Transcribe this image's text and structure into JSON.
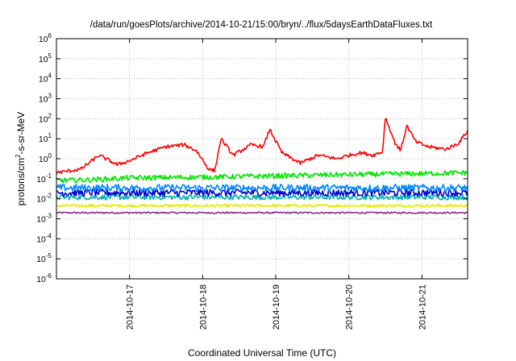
{
  "chart_data": {
    "type": "line",
    "title": "/data/run/goesPlots/archive/2014-10-21/15:00/bryn/../flux/5daysEarthDataFluxes.txt",
    "xlabel": "Coordinated Universal Time (UTC)",
    "ylabel": {
      "base": "protons/cm",
      "exp": "2",
      "rest": "-s-sr-MeV"
    },
    "yscale": "log",
    "ylim": [
      1e-06,
      1000000.0
    ],
    "ytick_labels": [
      {
        "base": "10",
        "exp": "-6"
      },
      {
        "base": "10",
        "exp": "-5"
      },
      {
        "base": "10",
        "exp": "-4"
      },
      {
        "base": "10",
        "exp": "-3"
      },
      {
        "base": "10",
        "exp": "-2"
      },
      {
        "base": "10",
        "exp": "-1"
      },
      {
        "base": "10",
        "exp": "0"
      },
      {
        "base": "10",
        "exp": "1"
      },
      {
        "base": "10",
        "exp": "2"
      },
      {
        "base": "10",
        "exp": "3"
      },
      {
        "base": "10",
        "exp": "4"
      },
      {
        "base": "10",
        "exp": "5"
      },
      {
        "base": "10",
        "exp": "6"
      }
    ],
    "xlim": [
      "2014-10-16 00:00",
      "2014-10-21 15:00"
    ],
    "xtick_labels": [
      "2014-10-17",
      "2014-10-18",
      "2014-10-19",
      "2014-10-20",
      "2014-10-21"
    ],
    "x_tick_dates": [
      "2014-10-17 00:00",
      "2014-10-18 00:00",
      "2014-10-19 00:00",
      "2014-10-20 00:00",
      "2014-10-21 00:00"
    ],
    "grid": true,
    "series": [
      {
        "color": "#8b2d8b",
        "x": [
          "2014-10-16 00:00",
          "2014-10-21 15:00"
        ],
        "y": [
          0.002,
          0.002
        ]
      },
      {
        "color": "#e8e800",
        "x": [
          "2014-10-16 00:00",
          "2014-10-21 15:00"
        ],
        "y": [
          0.0045,
          0.0045
        ]
      },
      {
        "color": "#00b3b3",
        "x": [
          "2014-10-16 00:00",
          "2014-10-21 15:00"
        ],
        "y": [
          0.012,
          0.012
        ]
      },
      {
        "color": "#0000cc",
        "x": [
          "2014-10-16 00:00",
          "2014-10-21 15:00"
        ],
        "y": [
          0.02,
          0.02
        ]
      },
      {
        "color": "#0088ff",
        "x": [
          "2014-10-16 00:00",
          "2014-10-21 15:00"
        ],
        "y": [
          0.035,
          0.035
        ]
      },
      {
        "color": "#00e600",
        "x": [
          "2014-10-16 00:00",
          "2014-10-16 12:00",
          "2014-10-17 00:00",
          "2014-10-18 00:00",
          "2014-10-19 00:00",
          "2014-10-20 00:00",
          "2014-10-21 00:00",
          "2014-10-21 15:00"
        ],
        "y": [
          0.08,
          0.09,
          0.11,
          0.12,
          0.14,
          0.16,
          0.18,
          0.2
        ]
      },
      {
        "color": "#ff0000",
        "x": [
          "2014-10-16 00:00",
          "2014-10-16 08:00",
          "2014-10-16 14:00",
          "2014-10-16 20:00",
          "2014-10-17 00:00",
          "2014-10-17 06:00",
          "2014-10-17 12:00",
          "2014-10-17 18:00",
          "2014-10-17 22:00",
          "2014-10-18 02:00",
          "2014-10-18 04:00",
          "2014-10-18 06:00",
          "2014-10-18 10:00",
          "2014-10-18 16:00",
          "2014-10-18 20:00",
          "2014-10-18 22:00",
          "2014-10-19 02:00",
          "2014-10-19 08:00",
          "2014-10-19 14:00",
          "2014-10-19 20:00",
          "2014-10-20 00:00",
          "2014-10-20 04:00",
          "2014-10-20 08:00",
          "2014-10-20 10:00",
          "2014-10-20 11:00",
          "2014-10-20 12:00",
          "2014-10-20 15:00",
          "2014-10-20 17:00",
          "2014-10-20 19:00",
          "2014-10-20 22:00",
          "2014-10-21 02:00",
          "2014-10-21 08:00",
          "2014-10-21 12:00",
          "2014-10-21 15:00"
        ],
        "y": [
          0.2,
          0.3,
          1.5,
          0.5,
          0.8,
          2.0,
          4.0,
          5.0,
          2.5,
          0.3,
          0.25,
          10.0,
          1.5,
          5.0,
          4.0,
          30.0,
          2.0,
          0.6,
          1.5,
          1.0,
          1.5,
          2.0,
          1.5,
          2.0,
          2.0,
          120.0,
          7.0,
          2.5,
          45.0,
          7.0,
          4.0,
          3.0,
          6.0,
          25.0
        ]
      }
    ]
  }
}
